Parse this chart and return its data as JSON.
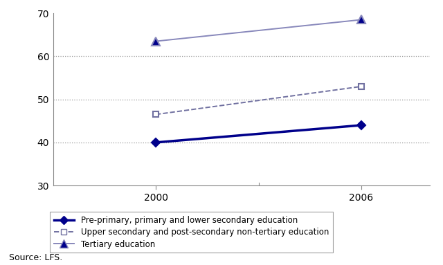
{
  "years": [
    2000,
    2006
  ],
  "series": [
    {
      "label": "Pre-primary, primary and lower secondary education",
      "values": [
        40,
        44
      ],
      "color": "#00008B",
      "linestyle": "-",
      "linewidth": 2.5,
      "marker": "D",
      "markersize": 6,
      "markerfacecolor": "#00008B"
    },
    {
      "label": "Upper secondary and post-secondary non-tertiary education",
      "values": [
        46.5,
        53
      ],
      "color": "#7070A0",
      "linestyle": "--",
      "linewidth": 1.4,
      "marker": "s",
      "markersize": 6,
      "markerfacecolor": "white"
    },
    {
      "label": "Tertiary education",
      "values": [
        63.5,
        68.5
      ],
      "color": "#8888BB",
      "linestyle": "-",
      "linewidth": 1.4,
      "marker": "^",
      "markersize": 8,
      "markerfacecolor": "#00008B"
    }
  ],
  "ylim": [
    30,
    70
  ],
  "yticks": [
    30,
    40,
    50,
    60,
    70
  ],
  "xlim": [
    1997,
    2008
  ],
  "xticks": [
    2000,
    2006
  ],
  "source_text": "Source: LFS.",
  "background_color": "#ffffff",
  "grid_color": "#999999",
  "legend_fontsize": 8.5,
  "tick_fontsize": 10
}
